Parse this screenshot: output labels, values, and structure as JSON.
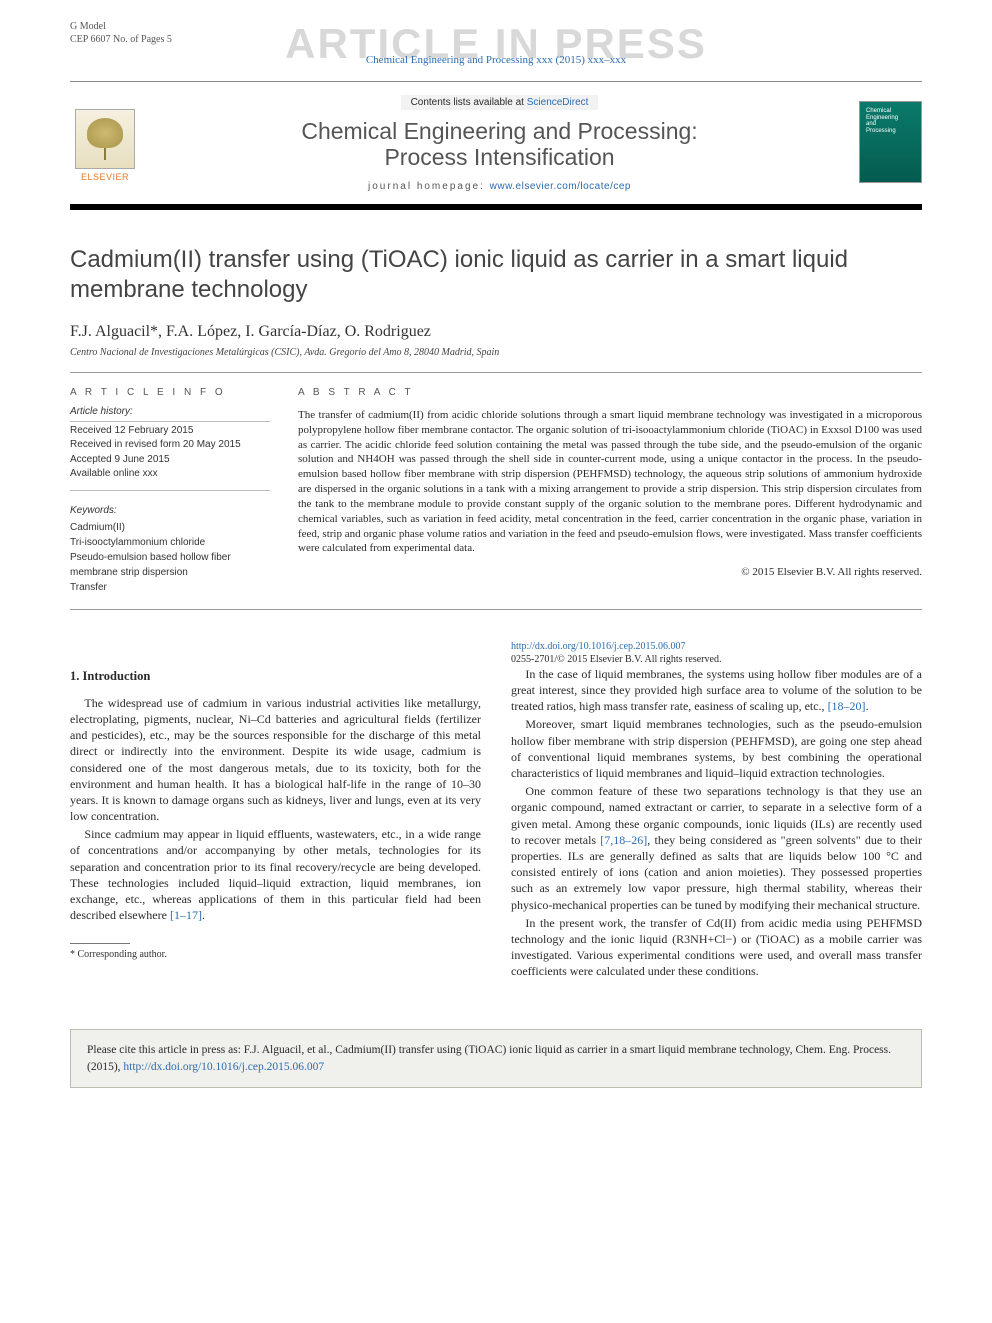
{
  "gmodel": {
    "line1": "G Model",
    "line2": "CEP 6607 No. of Pages 5"
  },
  "watermark": "ARTICLE IN PRESS",
  "citation_top": "Chemical Engineering and Processing xxx (2015) xxx–xxx",
  "journal_box": {
    "contents_pre": "Contents lists available at ",
    "contents_link": "ScienceDirect",
    "journal_title": "Chemical Engineering and Processing:\nProcess Intensification",
    "home_pre": "journal homepage: ",
    "home_link": "www.elsevier.com/locate/cep",
    "elsevier": "ELSEVIER",
    "cover_text": "Chemical\nEngineering\nand\nProcessing"
  },
  "article": {
    "title": "Cadmium(II) transfer using (TiOAC) ionic liquid as carrier in a smart liquid membrane technology",
    "authors_html": "F.J. Alguacil*, F.A. López, I. García-Díaz, O. Rodriguez",
    "affiliation": "Centro Nacional de Investigaciones Metalúrgicas (CSIC), Avda. Gregorio del Amo 8, 28040 Madrid, Spain"
  },
  "article_info": {
    "heading": "A R T I C L E   I N F O",
    "history_head": "Article history:",
    "history": [
      "Received 12 February 2015",
      "Received in revised form 20 May 2015",
      "Accepted 9 June 2015",
      "Available online xxx"
    ],
    "keywords_head": "Keywords:",
    "keywords": [
      "Cadmium(II)",
      "Tri-isooctylammonium chloride",
      "Pseudo-emulsion based hollow fiber membrane strip dispersion",
      "Transfer"
    ]
  },
  "abstract": {
    "heading": "A B S T R A C T",
    "text": "The transfer of cadmium(II) from acidic chloride solutions through a smart liquid membrane technology was investigated in a microporous polypropylene hollow fiber membrane contactor. The organic solution of tri-isooactylammonium chloride (TiOAC) in Exxsol D100 was used as carrier. The acidic chloride feed solution containing the metal was passed through the tube side, and the pseudo-emulsion of the organic solution and NH4OH was passed through the shell side in counter-current mode, using a unique contactor in the process. In the pseudo-emulsion based hollow fiber membrane with strip dispersion (PEHFMSD) technology, the aqueous strip solutions of ammonium hydroxide are dispersed in the organic solutions in a tank with a mixing arrangement to provide a strip dispersion. This strip dispersion circulates from the tank to the membrane module to provide constant supply of the organic solution to the membrane pores. Different hydrodynamic and chemical variables, such as variation in feed acidity, metal concentration in the feed, carrier concentration in the organic phase, variation in feed, strip and organic phase volume ratios and variation in the feed and pseudo-emulsion flows, were investigated. Mass transfer coefficients were calculated from experimental data.",
    "copyright": "© 2015 Elsevier B.V. All rights reserved."
  },
  "body": {
    "section1_heading": "1. Introduction",
    "p1": "The widespread use of cadmium in various industrial activities like metallurgy, electroplating, pigments, nuclear, Ni–Cd batteries and agricultural fields (fertilizer and pesticides), etc., may be the sources responsible for the discharge of this metal direct or indirectly into the environment. Despite its wide usage, cadmium is considered one of the most dangerous metals, due to its toxicity, both for the environment and human health. It has a biological half-life in the range of 10–30 years. It is known to damage organs such as kidneys, liver and lungs, even at its very low concentration.",
    "p2_pre": "Since cadmium may appear in liquid effluents, wastewaters, etc., in a wide range of concentrations and/or accompanying by other metals, technologies for its separation and concentration prior to its final recovery/recycle are being developed. These technologies included liquid–liquid extraction, liquid membranes, ion exchange, etc., whereas applications of them in this particular field had been described elsewhere ",
    "p2_ref": "[1–17]",
    "p2_post": ".",
    "p3_pre": "In the case of liquid membranes, the systems using hollow fiber modules are of a great interest, since they provided high surface area to volume of the solution to be treated ratios, high mass transfer rate, easiness of scaling up, etc., ",
    "p3_ref": "[18–20]",
    "p3_post": ".",
    "p4": "Moreover, smart liquid membranes technologies, such as the pseudo-emulsion hollow fiber membrane with strip dispersion (PEHFMSD), are going one step ahead of conventional liquid membranes systems, by best combining the operational characteristics of liquid membranes and liquid–liquid extraction technologies.",
    "p5_pre": "One common feature of these two separations technology is that they use an organic compound, named extractant or carrier, to separate in a selective form of a given metal. Among these organic compounds, ionic liquids (ILs) are recently used to recover metals ",
    "p5_ref": "[7,18–26]",
    "p5_post": ", they being considered as \"green solvents\" due to their properties. ILs are generally defined as salts that are liquids below 100 °C and consisted entirely of ions (cation and anion moieties). They possessed properties such as an extremely low vapor pressure, high thermal stability, whereas their physico-mechanical properties can be tuned by modifying their mechanical structure.",
    "p6": "In the present work, the transfer of Cd(II) from acidic media using PEHFMSD technology and the ionic liquid (R3NH+Cl−) or (TiOAC) as a mobile carrier was investigated. Various experimental conditions were used, and overall mass transfer coefficients were calculated under these conditions."
  },
  "footnote": {
    "corresponding": "* Corresponding author."
  },
  "doi": {
    "url": "http://dx.doi.org/10.1016/j.cep.2015.06.007",
    "issn_line": "0255-2701/© 2015 Elsevier B.V. All rights reserved."
  },
  "cite_box": {
    "pre": "Please cite this article in press as: F.J. Alguacil, et al., Cadmium(II) transfer using (TiOAC) ionic liquid as carrier in a smart liquid membrane technology, Chem. Eng. Process. (2015), ",
    "link": "http://dx.doi.org/10.1016/j.cep.2015.06.007"
  },
  "colors": {
    "link": "#2b6cb0",
    "watermark": "#d8d8d8",
    "elsevier_orange": "#e87722",
    "cover_bg": "#0a7a6b",
    "cite_bg": "#f0f0ec",
    "cite_border": "#bcbcb0"
  }
}
